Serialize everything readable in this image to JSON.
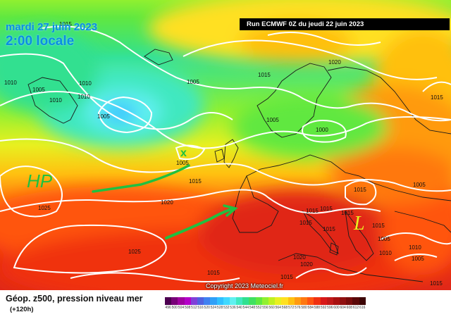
{
  "header": {
    "date": "mardi 27 juin 2023",
    "local_time": "2:00 locale",
    "run": "Run ECMWF 0Z du jeudi 22 juin 2023"
  },
  "footer": {
    "product": "Géop. z500, pression niveau mer",
    "lead": "(+120h)",
    "copyright": "Copyright 2023 Meteociel.fr"
  },
  "scale": {
    "labels": [
      "496",
      "500",
      "504",
      "508",
      "512",
      "516",
      "520",
      "524",
      "528",
      "532",
      "536",
      "540",
      "544",
      "548",
      "552",
      "556",
      "560",
      "564",
      "568",
      "572",
      "576",
      "580",
      "584",
      "588",
      "592",
      "596",
      "600",
      "604",
      "608",
      "612",
      "616"
    ],
    "colors": [
      "#4c0050",
      "#780078",
      "#a000a0",
      "#b400c8",
      "#8040d8",
      "#5060e0",
      "#4080f0",
      "#30a0f8",
      "#30c0ff",
      "#40d8ff",
      "#60f0f0",
      "#40e8c0",
      "#30e090",
      "#40e060",
      "#60e840",
      "#90f030",
      "#c0f020",
      "#e8f020",
      "#ffe020",
      "#ffc010",
      "#ff9a10",
      "#ff7810",
      "#ff5410",
      "#f03010",
      "#d81818",
      "#c01818",
      "#a81010",
      "#901010",
      "#780c0c",
      "#5a0808",
      "#3c0404"
    ]
  },
  "isobars": [
    "1015",
    "1010",
    "1005",
    "1010",
    "1010",
    "1000",
    "1005",
    "1005",
    "1010",
    "1020",
    "1015",
    "1005",
    "1000",
    "1015",
    "1015",
    "1005",
    "1005",
    "1025",
    "1020",
    "1015",
    "1015",
    "1015",
    "1015",
    "1015",
    "1015",
    "1015",
    "1010",
    "1005",
    "1025",
    "1020",
    "1020",
    "1015",
    "1015",
    "1015",
    "1010",
    "1005"
  ],
  "annotations": {
    "high": "HP",
    "cross": "x",
    "low": "L"
  }
}
